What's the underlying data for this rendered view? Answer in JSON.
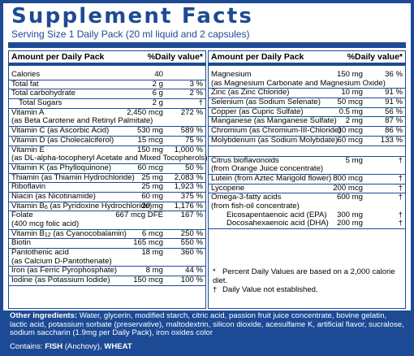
{
  "title": "Supplement Facts",
  "serving": "Serving Size 1 Daily Pack  (20 ml liquid and 2 capsules)",
  "header": {
    "amount": "Amount per Daily Pack",
    "dv": "%Daily value*"
  },
  "left_rows": [
    {
      "name": "Calories",
      "amount": "40",
      "dv": ""
    },
    {
      "name": "Total fat",
      "amount": "2 g",
      "dv": "3 %"
    },
    {
      "name": "Total carbohydrate",
      "amount": "6 g",
      "dv": "2 %"
    },
    {
      "name": "Total Sugars",
      "amount": "2 g",
      "dv": "†"
    },
    {
      "name": "Vitamin A",
      "amount": "2,450 mcg",
      "dv": "272 %"
    },
    {
      "name": "(as Beta Carotene and Retinyl Palmitate)",
      "amount": "",
      "dv": ""
    },
    {
      "name": "Vitamin C (as Ascorbic Acid)",
      "amount": "530 mg",
      "dv": "589 %"
    },
    {
      "name": "Vitamin D (as Cholecalciferol)",
      "amount": "15 mcg",
      "dv": "75 %"
    },
    {
      "name": "Vitamin E",
      "amount": "150 mg",
      "dv": "1,000 %"
    },
    {
      "name": "(as DL-alpha-tocopheryl Acetate and Mixed Tocopherols)",
      "amount": "",
      "dv": ""
    },
    {
      "name": "Vitamin K (as Phylloquinone)",
      "amount": "60 mcg",
      "dv": "50 %"
    },
    {
      "name": "Thiamin (as Thiamin Hydrochloride)",
      "amount": "25 mg",
      "dv": "2,083 %"
    },
    {
      "name": "Riboflavin",
      "amount": "25 mg",
      "dv": "1,923 %"
    },
    {
      "name": "Niacin (as Nicotinamide)",
      "amount": "60 mg",
      "dv": "375 %"
    },
    {
      "name": "Vitamin B6 (as Pyridoxine Hydrochloride)",
      "amount": "20 mg",
      "dv": "1,176 %"
    },
    {
      "name": "Folate",
      "amount": "667 mcg DFE",
      "dv": "167 %"
    },
    {
      "name": "(400 mcg folic acid)",
      "amount": "",
      "dv": ""
    },
    {
      "name": "Vitamin B12 (as Cyanocobalamin)",
      "amount": "6 mcg",
      "dv": "250 %"
    },
    {
      "name": "Biotin",
      "amount": "165 mcg",
      "dv": "550 %"
    },
    {
      "name": "Pantothenic acid",
      "amount": "18 mg",
      "dv": "360 %"
    },
    {
      "name": "(as Calcium D-Pantothenate)",
      "amount": "",
      "dv": ""
    },
    {
      "name": "Iron (as Ferric Pyrophosphate)",
      "amount": "8 mg",
      "dv": "44 %"
    },
    {
      "name": "Iodine (as Potassium Iodide)",
      "amount": "150 mcg",
      "dv": "100 %"
    }
  ],
  "right_rows": [
    {
      "name": "Magnesium",
      "amount": "150 mg",
      "dv": "36 %"
    },
    {
      "name": "(as Magnesium Carbonate and Magnesium Oxide)",
      "amount": "",
      "dv": ""
    },
    {
      "name": "Zinc (as Zinc Chloride)",
      "amount": "10 mg",
      "dv": "91 %"
    },
    {
      "name": "Selenium (as Sodium Selenate)",
      "amount": "50 mcg",
      "dv": "91 %"
    },
    {
      "name": "Copper (as Cupric Sulfate)",
      "amount": "0.5 mg",
      "dv": "56 %"
    },
    {
      "name": "Manganese (as Manganese Sulfate)",
      "amount": "2 mg",
      "dv": "87 %"
    },
    {
      "name": "Chromium (as Chromium-III-Chloride)",
      "amount": "30 mcg",
      "dv": "86 %"
    },
    {
      "name": "Molybdenum (as Sodium Molybdate)",
      "amount": "60 mcg",
      "dv": "133 %"
    },
    {
      "name": "Citrus bioflavonoids",
      "amount": "5 mg",
      "dv": "†"
    },
    {
      "name": "(from Orange Juice concentrate)",
      "amount": "",
      "dv": ""
    },
    {
      "name": "Lutein (from Aztec Marigold flower)",
      "amount": "800 mcg",
      "dv": "†"
    },
    {
      "name": "Lycopene",
      "amount": "200 mcg",
      "dv": "†"
    },
    {
      "name": "Omega-3-fatty acids",
      "amount": "600 mg",
      "dv": "†"
    },
    {
      "name": "(from fish-oil concentrate)",
      "amount": "",
      "dv": ""
    },
    {
      "name": "Eicosapentaenoic acid (EPA)",
      "amount": "300 mg",
      "dv": "†"
    },
    {
      "name": "Docosahexaenoic acid (DHA)",
      "amount": "200 mg",
      "dv": "†"
    }
  ],
  "notes": {
    "star": "*",
    "star_text": "Percent Daily Values are based on a 2,000 calorie diet.",
    "dagger": "†",
    "dagger_text": "Daily Value not established."
  },
  "other": {
    "label": "Other ingredients:",
    "text": "Water, glycerin, modified starch, citric acid, passion fruit juice concentrate, bovine gelatin, lactic acid, potassium sorbate (preservative), maltodextrin, silicon dioxide, acesulfame K, artificial flavor, sucralose, sodium saccharin (1.9mg per Daily Pack), iron oxides color"
  },
  "contains": {
    "label": "Contains:",
    "fish": "FISH",
    "fish_note": "(Anchovy),",
    "wheat": "WHEAT"
  },
  "colors": {
    "brand": "#1d4a94"
  }
}
